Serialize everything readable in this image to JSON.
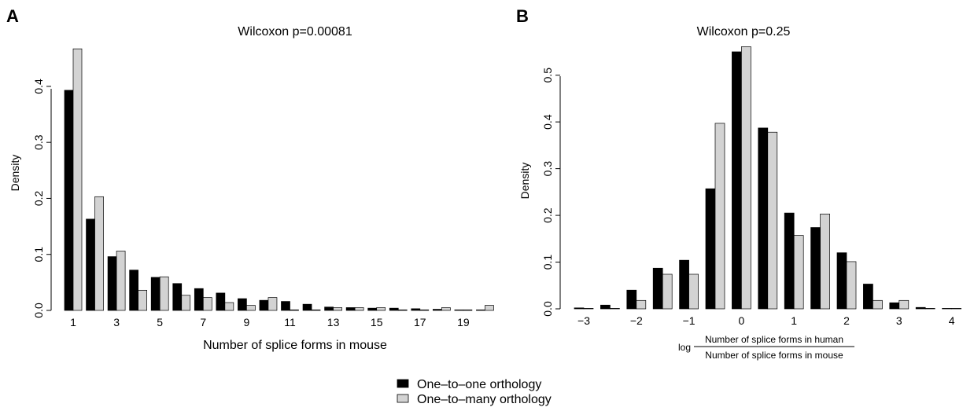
{
  "figure": {
    "legend": {
      "position": "bottom-center",
      "entries": [
        {
          "label": "One–to–one orthology",
          "color": "#000000"
        },
        {
          "label": "One–to–many orthology",
          "color": "#d3d3d3"
        }
      ]
    }
  },
  "chart_data": [
    {
      "type": "bar",
      "panel_label": "A",
      "title": "Wilcoxon p=0.00081",
      "xlabel": "Number of splice forms in mouse",
      "ylabel": "Density",
      "ylim": [
        0,
        0.47
      ],
      "yticks": [
        0.0,
        0.1,
        0.2,
        0.3,
        0.4
      ],
      "ytick_labels": [
        "0.0",
        "0.1",
        "0.2",
        "0.3",
        "0.4"
      ],
      "xtick_labels": [
        "1",
        "3",
        "5",
        "7",
        "9",
        "11",
        "13",
        "15",
        "17",
        "19"
      ],
      "categories": [
        "1",
        "2",
        "3",
        "4",
        "5",
        "6",
        "7",
        "8",
        "9",
        "10",
        "11",
        "12",
        "13",
        "14",
        "15",
        "16",
        "17",
        "18",
        "19",
        "20"
      ],
      "grid": false,
      "series": [
        {
          "name": "One–to–one orthology",
          "color": "#000000",
          "values": [
            0.393,
            0.163,
            0.096,
            0.072,
            0.059,
            0.048,
            0.039,
            0.031,
            0.021,
            0.018,
            0.016,
            0.011,
            0.006,
            0.005,
            0.004,
            0.004,
            0.003,
            0.002,
            0.001,
            0.001
          ]
        },
        {
          "name": "One–to–many orthology",
          "color": "#d3d3d3",
          "values": [
            0.467,
            0.203,
            0.106,
            0.036,
            0.06,
            0.027,
            0.023,
            0.014,
            0.009,
            0.023,
            0.001,
            0.001,
            0.005,
            0.005,
            0.005,
            0.001,
            0.001,
            0.005,
            0.001,
            0.009
          ]
        }
      ]
    },
    {
      "type": "bar",
      "panel_label": "B",
      "title": "Wilcoxon p=0.25",
      "xlabel_prefix": "log",
      "xlabel_numerator": "Number of splice forms in human",
      "xlabel_denominator": "Number of splice forms in mouse",
      "ylabel": "Density",
      "ylim": [
        0,
        0.56
      ],
      "yticks": [
        0.0,
        0.1,
        0.2,
        0.3,
        0.4,
        0.5
      ],
      "ytick_labels": [
        "0.0",
        "0.1",
        "0.2",
        "0.3",
        "0.4",
        "0.5"
      ],
      "x": [
        -3,
        -2.5,
        -2,
        -1.5,
        -1,
        -0.5,
        0,
        0.5,
        1,
        1.5,
        2,
        2.5,
        3,
        3.5,
        4
      ],
      "xtick_values": [
        -3,
        -2,
        -1,
        0,
        1,
        2,
        3,
        4
      ],
      "xtick_labels": [
        "−3",
        "−2",
        "−1",
        "0",
        "1",
        "2",
        "3",
        "4"
      ],
      "grid": false,
      "series": [
        {
          "name": "One–to–one orthology",
          "color": "#000000",
          "values": [
            0.002,
            0.008,
            0.04,
            0.087,
            0.104,
            0.257,
            0.55,
            0.387,
            0.205,
            0.174,
            0.12,
            0.053,
            0.013,
            0.003,
            0.001
          ]
        },
        {
          "name": "One–to–many orthology",
          "color": "#d3d3d3",
          "values": [
            0.001,
            0.001,
            0.018,
            0.074,
            0.074,
            0.397,
            0.561,
            0.378,
            0.157,
            0.203,
            0.101,
            0.018,
            0.018,
            0.001,
            0.001
          ]
        }
      ]
    }
  ]
}
